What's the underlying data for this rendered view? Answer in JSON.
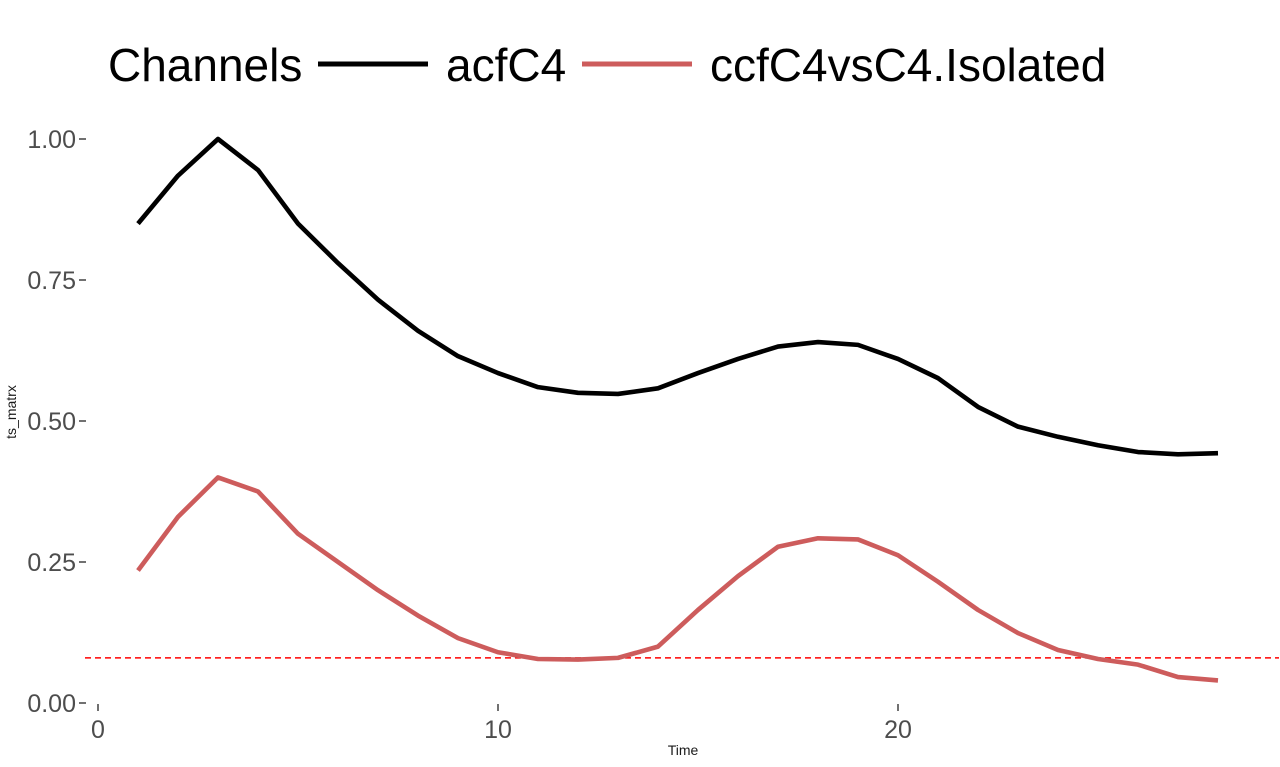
{
  "chart_data": {
    "type": "line",
    "title": "",
    "legend": {
      "title": "Channels",
      "position": "top",
      "entries": [
        {
          "label": "acfC4",
          "color": "#000000"
        },
        {
          "label": "ccfC4vsC4.Isolated",
          "color": "#CD5C5C"
        }
      ]
    },
    "xlabel": "Time",
    "ylabel": "ts_matrx",
    "xlim": [
      -0.3,
      29.5
    ],
    "ylim": [
      0.0,
      1.0
    ],
    "grid": false,
    "axis_text_color": "#4d4d4d",
    "x": [
      1,
      2,
      3,
      4,
      5,
      6,
      7,
      8,
      9,
      10,
      11,
      12,
      13,
      14,
      15,
      16,
      17,
      18,
      19,
      20,
      21,
      22,
      23,
      24,
      25,
      26,
      27,
      28
    ],
    "series": [
      {
        "name": "acfC4",
        "color": "#000000",
        "values": [
          0.85,
          0.935,
          1.0,
          0.945,
          0.85,
          0.78,
          0.715,
          0.66,
          0.615,
          0.585,
          0.56,
          0.55,
          0.548,
          0.558,
          0.585,
          0.61,
          0.632,
          0.64,
          0.635,
          0.61,
          0.576,
          0.525,
          0.49,
          0.472,
          0.457,
          0.445,
          0.441,
          0.443
        ]
      },
      {
        "name": "ccfC4vsC4.Isolated",
        "color": "#CD5C5C",
        "values": [
          0.235,
          0.33,
          0.4,
          0.375,
          0.3,
          0.25,
          0.2,
          0.155,
          0.115,
          0.09,
          0.078,
          0.077,
          0.08,
          0.1,
          0.165,
          0.225,
          0.277,
          0.292,
          0.29,
          0.262,
          0.215,
          0.165,
          0.124,
          0.094,
          0.078,
          0.068,
          0.046,
          0.04
        ]
      }
    ],
    "reference_line": {
      "y": 0.08,
      "color": "#FF0000",
      "style": "dashed"
    },
    "xticks": [
      {
        "value": 0,
        "label": "0"
      },
      {
        "value": 10,
        "label": "10"
      },
      {
        "value": 20,
        "label": "20"
      }
    ],
    "yticks": [
      {
        "value": 1.0,
        "label": "1.00"
      },
      {
        "value": 0.75,
        "label": "0.75"
      },
      {
        "value": 0.5,
        "label": "0.50"
      },
      {
        "value": 0.25,
        "label": "0.25"
      },
      {
        "value": 0.0,
        "label": "0.00"
      }
    ]
  }
}
